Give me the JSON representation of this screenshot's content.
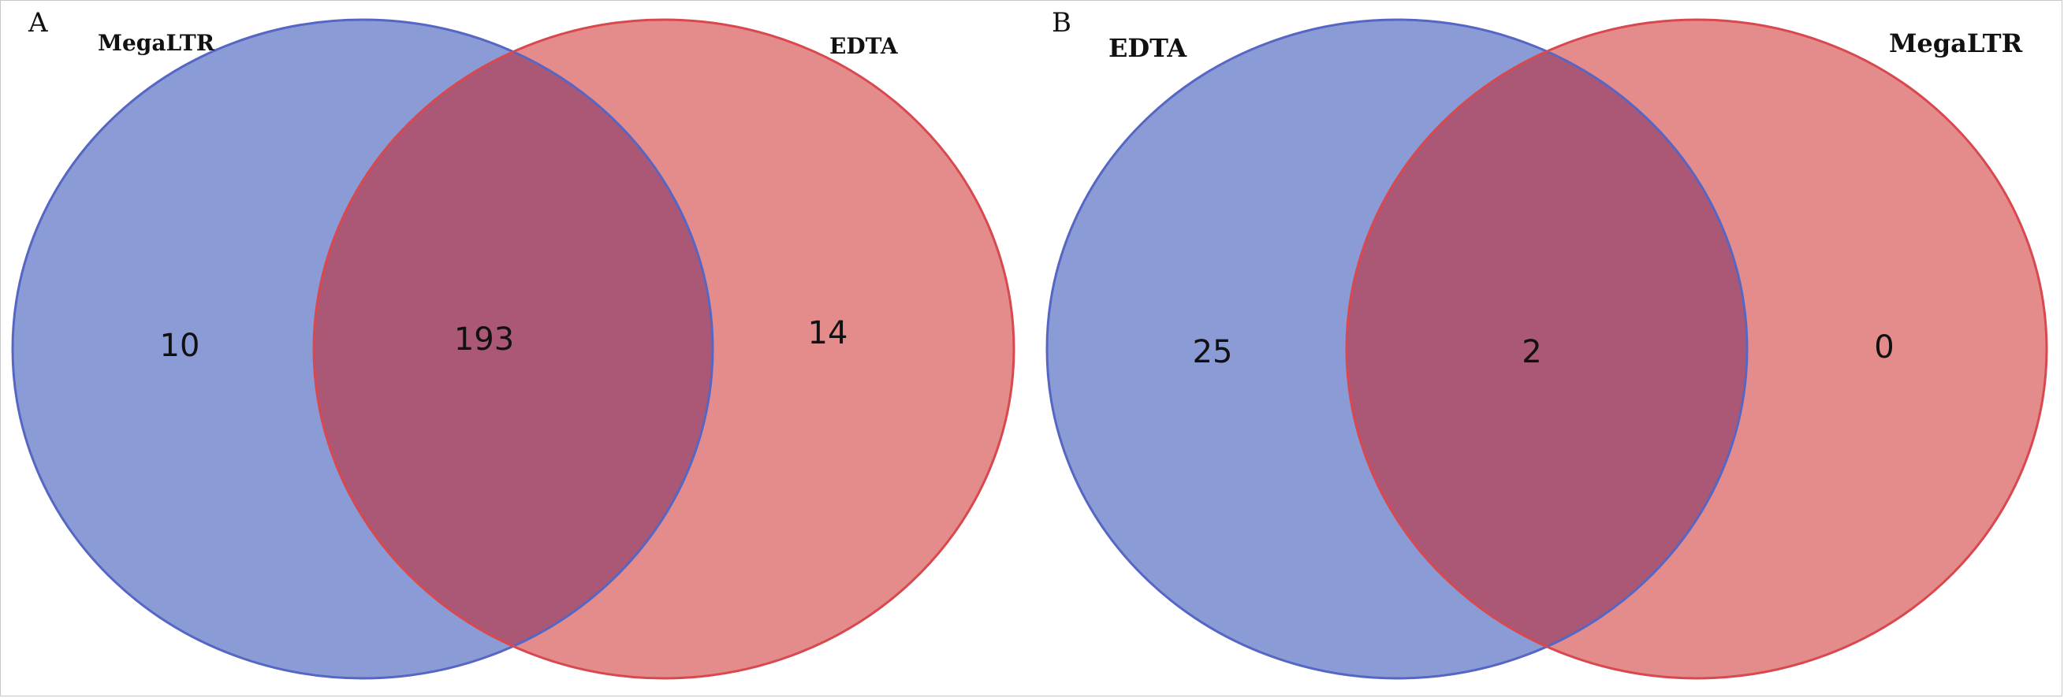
{
  "colors": {
    "left_fill": "#8a9bd6",
    "left_stroke": "#5566c4",
    "right_fill": "#e48b8b",
    "right_stroke": "#d8484e",
    "overlap_fill": "#aa5876"
  },
  "panels": [
    {
      "letter": "A",
      "left_set": "MegaLTR",
      "right_set": "EDTA",
      "left_only": "10",
      "both": "193",
      "right_only": "14"
    },
    {
      "letter": "B",
      "left_set": "EDTA",
      "right_set": "MegaLTR",
      "left_only": "25",
      "both": "2",
      "right_only": "0"
    }
  ]
}
